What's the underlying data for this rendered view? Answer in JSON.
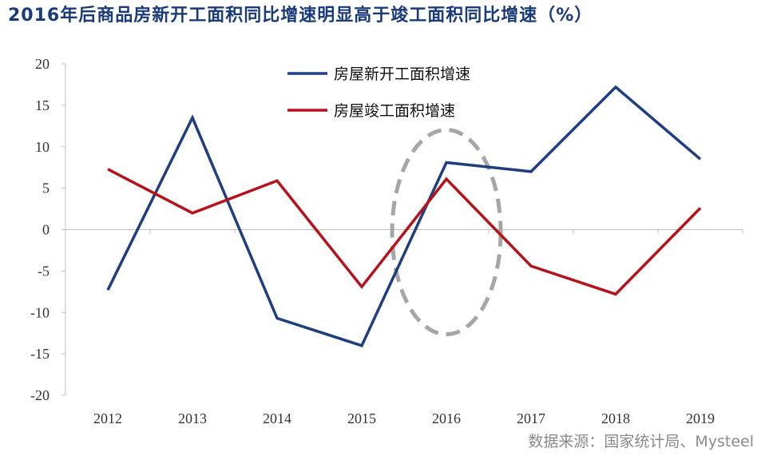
{
  "title": "2016年后商品房新开工面积同比增速明显高于竣工面积同比增速（%）",
  "source": "数据来源：国家统计局、Mysteel",
  "chart_data": {
    "type": "line",
    "title": "2016年后商品房新开工面积同比增速明显高于竣工面积同比增速（%）",
    "categories": [
      "2012",
      "2013",
      "2014",
      "2015",
      "2016",
      "2017",
      "2018",
      "2019"
    ],
    "ylim": [
      -20,
      20
    ],
    "yticks": [
      -20,
      -15,
      -10,
      -5,
      0,
      5,
      10,
      15,
      20
    ],
    "grid": false,
    "legend_position": "top-right",
    "series": [
      {
        "name": "房屋新开工面积增速",
        "color": "#1f3e80",
        "values": [
          -7.3,
          13.5,
          -10.7,
          -14.0,
          8.1,
          7.0,
          17.2,
          8.5
        ]
      },
      {
        "name": "房屋竣工面积增速",
        "color": "#b5121b",
        "values": [
          7.3,
          2.0,
          5.9,
          -6.9,
          6.1,
          -4.4,
          -7.8,
          2.6
        ]
      }
    ],
    "annotations": [
      {
        "type": "dashed-ellipse",
        "color": "#a6a6a6",
        "around_category": "2016"
      }
    ]
  }
}
